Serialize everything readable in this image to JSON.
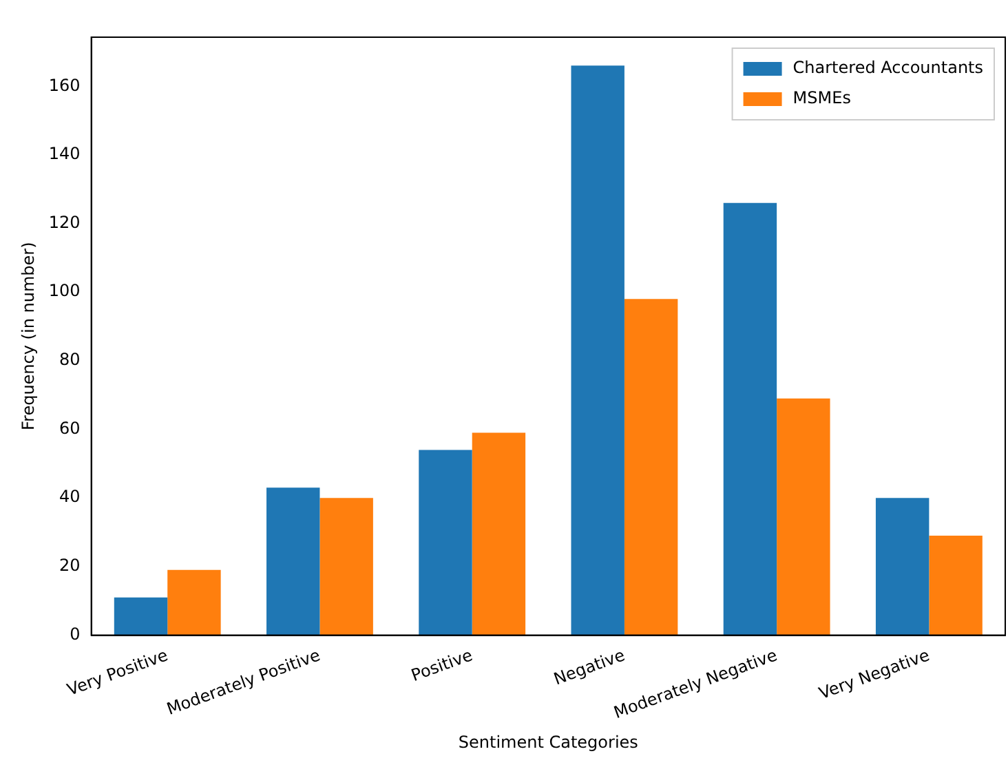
{
  "chart_data": {
    "type": "bar",
    "xlabel": "Sentiment Categories",
    "ylabel": "Frequency (in number)",
    "categories": [
      "Very Positive",
      "Moderately Positive",
      "Positive",
      "Negative",
      "Moderately Negative",
      "Very Negative"
    ],
    "series": [
      {
        "name": "Chartered Accountants",
        "color": "#1f77b4",
        "values": [
          11,
          43,
          54,
          166,
          126,
          40
        ]
      },
      {
        "name": "MSMEs",
        "color": "#ff7f0e",
        "values": [
          19,
          40,
          59,
          98,
          69,
          29
        ]
      }
    ],
    "ylim": [
      0,
      174.3
    ],
    "yticks": [
      0,
      20,
      40,
      60,
      80,
      100,
      120,
      140,
      160
    ],
    "grid": false,
    "legend": "top right"
  }
}
